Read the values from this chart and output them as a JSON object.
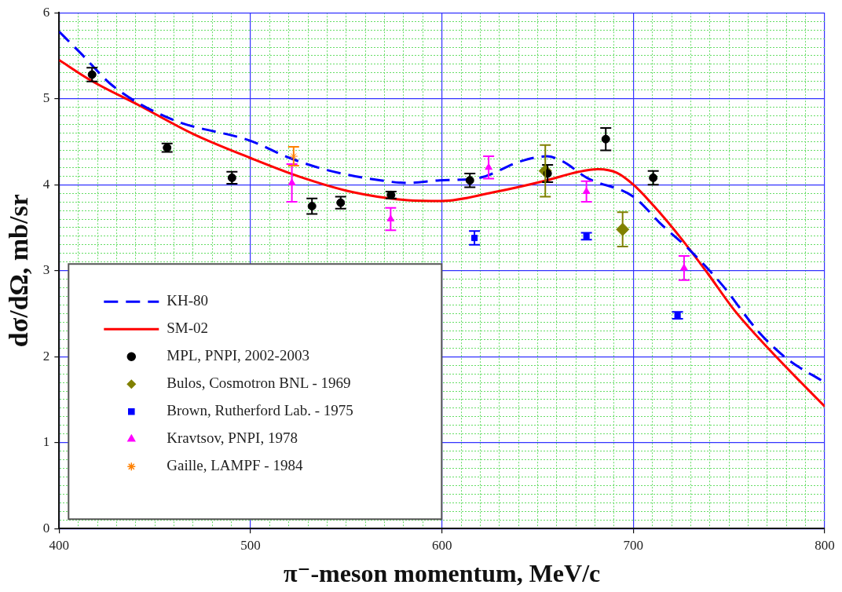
{
  "chart_data": {
    "type": "scatter",
    "xlabel": "π⁻-meson momentum, MeV/c",
    "ylabel": "dσ/dΩ, mb/sr",
    "xlim": [
      400,
      800
    ],
    "xticks": [
      400,
      {
        "value": 410,
        "label": null
      },
      {
        "value": 420,
        "label": null
      },
      {
        "value": 430,
        "label": null
      },
      {
        "value": 440,
        "label": null
      },
      {
        "value": 450,
        "label": null
      },
      {
        "value": 460,
        "label": null
      },
      {
        "value": 470,
        "label": null
      },
      {
        "value": 480,
        "label": null
      },
      {
        "value": 490,
        "label": null
      },
      500,
      {
        "value": 510,
        "label": null
      },
      {
        "value": 520,
        "label": null
      },
      {
        "value": 530,
        "label": null
      },
      {
        "value": 540,
        "label": null
      },
      {
        "value": 550,
        "label": null
      },
      {
        "value": 560,
        "label": null
      },
      {
        "value": 570,
        "label": null
      },
      {
        "value": 580,
        "label": null
      },
      {
        "value": 590,
        "label": null
      },
      600,
      {
        "value": 610,
        "label": null
      },
      {
        "value": 620,
        "label": null
      },
      {
        "value": 630,
        "label": null
      },
      {
        "value": 640,
        "label": null
      },
      {
        "value": 650,
        "label": null
      },
      {
        "value": 660,
        "label": null
      },
      {
        "value": 670,
        "label": null
      },
      {
        "value": 680,
        "label": null
      },
      {
        "value": 690,
        "label": null
      },
      700,
      {
        "value": 710,
        "label": null
      },
      {
        "value": 720,
        "label": null
      },
      {
        "value": 730,
        "label": null
      },
      {
        "value": 740,
        "label": null
      },
      {
        "value": 750,
        "label": null
      },
      {
        "value": 760,
        "label": null
      },
      {
        "value": 770,
        "label": null
      },
      {
        "value": 780,
        "label": null
      },
      {
        "value": 790,
        "label": null
      },
      800
    ],
    "ylim": [
      0,
      6
    ],
    "yticks": [
      0,
      {
        "value": 0.1,
        "label": null
      },
      {
        "value": 0.2,
        "label": null
      },
      {
        "value": 0.3,
        "label": null
      },
      {
        "value": 0.4,
        "label": null
      },
      {
        "value": 0.5,
        "label": null
      },
      {
        "value": 0.6,
        "label": null
      },
      {
        "value": 0.7,
        "label": null
      },
      {
        "value": 0.8,
        "label": null
      },
      {
        "value": 0.9,
        "label": null
      },
      1,
      {
        "value": 1.1,
        "label": null
      },
      {
        "value": 1.2,
        "label": null
      },
      {
        "value": 1.3,
        "label": null
      },
      {
        "value": 1.4,
        "label": null
      },
      {
        "value": 1.5,
        "label": null
      },
      {
        "value": 1.6,
        "label": null
      },
      {
        "value": 1.7,
        "label": null
      },
      {
        "value": 1.8,
        "label": null
      },
      {
        "value": 1.9,
        "label": null
      },
      2,
      {
        "value": 2.1,
        "label": null
      },
      {
        "value": 2.2,
        "label": null
      },
      {
        "value": 2.3,
        "label": null
      },
      {
        "value": 2.4,
        "label": null
      },
      {
        "value": 2.5,
        "label": null
      },
      {
        "value": 2.6,
        "label": null
      },
      {
        "value": 2.7,
        "label": null
      },
      {
        "value": 2.8,
        "label": null
      },
      {
        "value": 2.9,
        "label": null
      },
      3,
      {
        "value": 3.1,
        "label": null
      },
      {
        "value": 3.2,
        "label": null
      },
      {
        "value": 3.3,
        "label": null
      },
      {
        "value": 3.4,
        "label": null
      },
      {
        "value": 3.5,
        "label": null
      },
      {
        "value": 3.6,
        "label": null
      },
      {
        "value": 3.7,
        "label": null
      },
      {
        "value": 3.8,
        "label": null
      },
      {
        "value": 3.9,
        "label": null
      },
      4,
      {
        "value": 4.1,
        "label": null
      },
      {
        "value": 4.2,
        "label": null
      },
      {
        "value": 4.3,
        "label": null
      },
      {
        "value": 4.4,
        "label": null
      },
      {
        "value": 4.5,
        "label": null
      },
      {
        "value": 4.6,
        "label": null
      },
      {
        "value": 4.7,
        "label": null
      },
      {
        "value": 4.8,
        "label": null
      },
      {
        "value": 4.9,
        "label": null
      },
      5,
      {
        "value": 5.1,
        "label": null
      },
      {
        "value": 5.2,
        "label": null
      },
      {
        "value": 5.3,
        "label": null
      },
      {
        "value": 5.4,
        "label": null
      },
      {
        "value": 5.5,
        "label": null
      },
      {
        "value": 5.6,
        "label": null
      },
      {
        "value": 5.7,
        "label": null
      },
      {
        "value": 5.8,
        "label": null
      },
      {
        "value": 5.9,
        "label": null
      },
      6
    ],
    "grid": true,
    "legend": "bottom left",
    "series": [
      {
        "name": "KH-80",
        "type": "line",
        "line_style": "dashed",
        "marker": "none",
        "color": "#0000ff",
        "x": [
          400,
          411.2,
          428,
          458.8,
          500,
          520.5,
          540,
          568,
          582,
          598.7,
          619.7,
          640.8,
          654.8,
          663.2,
          675.7,
          700,
          715,
          729,
          745.8,
          765.4,
          780,
          800
        ],
        "values": [
          5.78,
          5.53,
          5.15,
          4.76,
          4.51,
          4.31,
          4.17,
          4.05,
          4.02,
          4.05,
          4.08,
          4.27,
          4.33,
          4.27,
          4.08,
          3.86,
          3.53,
          3.25,
          2.85,
          2.29,
          1.98,
          1.7
        ]
      },
      {
        "name": "SM-02",
        "type": "line",
        "line_style": "solid",
        "marker": "none",
        "color": "#ff0000",
        "x": [
          400,
          416.8,
          442,
          470,
          500,
          526,
          554,
          582,
          600,
          626.7,
          654.7,
          671.5,
          681.3,
          691.2,
          700,
          710.8,
          724.8,
          738.8,
          752.8,
          775,
          800
        ],
        "values": [
          5.45,
          5.21,
          4.92,
          4.59,
          4.31,
          4.09,
          3.91,
          3.82,
          3.81,
          3.91,
          4.05,
          4.15,
          4.18,
          4.14,
          4.0,
          3.75,
          3.38,
          2.97,
          2.54,
          1.99,
          1.42
        ]
      },
      {
        "name": "MPL, PNPI, 2002-2003",
        "marker": "circle",
        "color": "#000000",
        "x": [
          417.2,
          456.4,
          490.3,
          532.1,
          547.1,
          573.4,
          614.6,
          655.2,
          685.6,
          710.4
        ],
        "values": [
          5.28,
          4.43,
          4.08,
          3.75,
          3.79,
          3.88,
          4.05,
          4.13,
          4.53,
          4.08
        ],
        "errors": [
          0.08,
          0.05,
          0.07,
          0.09,
          0.07,
          0.04,
          0.08,
          0.1,
          0.13,
          0.08
        ]
      },
      {
        "name": "Bulos, Cosmotron BNL - 1969",
        "marker": "diamond",
        "color": "#808000",
        "x": [
          654,
          694.4
        ],
        "values": [
          4.16,
          3.48
        ],
        "errors": [
          0.3,
          0.2
        ]
      },
      {
        "name": "Brown, Rutherford Lab. - 1975",
        "marker": "square",
        "color": "#0000ff",
        "x": [
          617,
          675.5,
          723.1
        ],
        "values": [
          3.38,
          3.4,
          2.48
        ],
        "errors": [
          0.08,
          0.04,
          0.04
        ]
      },
      {
        "name": "Kravtsov, PNPI, 1978",
        "marker": "triangle",
        "color": "#ff00ff",
        "x": [
          521.6,
          573.2,
          624.4,
          675.5,
          726.5
        ],
        "values": [
          4.02,
          3.6,
          4.2,
          3.92,
          3.03
        ],
        "errors": [
          0.22,
          0.13,
          0.13,
          0.12,
          0.14
        ]
      },
      {
        "name": "Gaille, LAMPF - 1984",
        "marker": "cross",
        "color": "#ff8000",
        "x": [
          522.5
        ],
        "values": [
          4.33
        ],
        "errors": [
          0.11
        ]
      }
    ]
  }
}
